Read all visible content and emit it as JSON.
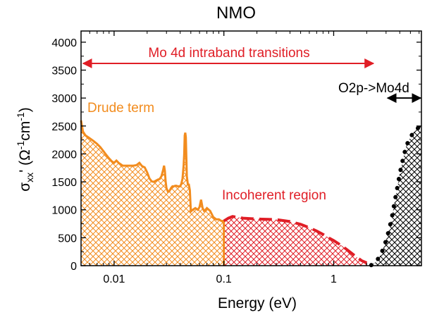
{
  "chart_data": {
    "type": "area",
    "title": "NMO",
    "xlabel": "Energy (eV)",
    "ylabel": "σ",
    "ylabel_sub": "xx",
    "ylabel_rest": "' (Ω",
    "ylabel_exp1": "-1",
    "ylabel_cm": "cm",
    "ylabel_exp2": "-1",
    "ylabel_close": ")",
    "x_scale": "log",
    "xlim": [
      0.005,
      6.3
    ],
    "ylim": [
      0,
      4200
    ],
    "x_ticks": [
      {
        "value": 0.01,
        "label": "0.01"
      },
      {
        "value": 0.1,
        "label": "0.1"
      },
      {
        "value": 1,
        "label": "1"
      }
    ],
    "y_ticks": [
      {
        "value": 0,
        "label": "0"
      },
      {
        "value": 500,
        "label": "500"
      },
      {
        "value": 1000,
        "label": "1000"
      },
      {
        "value": 1500,
        "label": "1500"
      },
      {
        "value": 2000,
        "label": "2000"
      },
      {
        "value": 2500,
        "label": "2500"
      },
      {
        "value": 3000,
        "label": "3000"
      },
      {
        "value": 3500,
        "label": "3500"
      },
      {
        "value": 4000,
        "label": "4000"
      }
    ],
    "grid": false,
    "series": [
      {
        "color": "#f28c1e",
        "x": [
          0.005,
          0.0052,
          0.0055,
          0.006,
          0.0065,
          0.007,
          0.0075,
          0.008,
          0.0085,
          0.009,
          0.0095,
          0.01,
          0.0105,
          0.011,
          0.012,
          0.013,
          0.014,
          0.015,
          0.016,
          0.017,
          0.018,
          0.019,
          0.02,
          0.021,
          0.022,
          0.023,
          0.024,
          0.025,
          0.026,
          0.027,
          0.028,
          0.0285,
          0.029,
          0.0295,
          0.03,
          0.031,
          0.032,
          0.033,
          0.034,
          0.035,
          0.036,
          0.037,
          0.038,
          0.039,
          0.04,
          0.041,
          0.042,
          0.043,
          0.0435,
          0.044,
          0.0445,
          0.045,
          0.0455,
          0.046,
          0.047,
          0.048,
          0.049,
          0.05,
          0.052,
          0.055,
          0.058,
          0.06,
          0.062,
          0.064,
          0.066,
          0.068,
          0.07,
          0.075,
          0.08,
          0.085,
          0.09,
          0.095,
          0.1
        ],
        "y": [
          2600,
          2400,
          2330,
          2280,
          2230,
          2180,
          2120,
          2050,
          1980,
          1920,
          1870,
          1840,
          1880,
          1840,
          1790,
          1790,
          1790,
          1790,
          1800,
          1840,
          1780,
          1760,
          1670,
          1560,
          1510,
          1500,
          1520,
          1540,
          1550,
          1600,
          1720,
          1790,
          1700,
          1500,
          1390,
          1320,
          1340,
          1390,
          1420,
          1420,
          1430,
          1430,
          1420,
          1420,
          1420,
          1470,
          1560,
          1800,
          2000,
          2330,
          2380,
          2300,
          1950,
          1600,
          1450,
          1450,
          1350,
          970,
          1000,
          1030,
          1000,
          1050,
          1180,
          1030,
          980,
          1000,
          1030,
          980,
          870,
          830,
          830,
          800,
          800
        ]
      },
      {
        "color": "#e01e26",
        "dashed": true,
        "x": [
          0.1,
          0.11,
          0.12,
          0.13,
          0.15,
          0.2,
          0.3,
          0.4,
          0.5,
          0.6,
          0.7,
          0.8,
          0.9,
          1.0,
          1.2,
          1.4,
          1.6,
          1.8,
          2.0
        ],
        "y": [
          800,
          850,
          880,
          870,
          850,
          835,
          825,
          790,
          740,
          680,
          620,
          560,
          500,
          450,
          350,
          250,
          160,
          90,
          50
        ]
      },
      {
        "color": "#000000",
        "dotted": true,
        "x": [
          2.2,
          2.4,
          2.6,
          2.8,
          3.0,
          3.2,
          3.4,
          3.6,
          3.8,
          4.0,
          4.3,
          4.6,
          5.0,
          5.4,
          5.8,
          6.2
        ],
        "y": [
          10,
          60,
          150,
          280,
          450,
          650,
          880,
          1150,
          1400,
          1650,
          1930,
          2150,
          2300,
          2400,
          2450,
          2530
        ]
      }
    ],
    "annotations": [
      {
        "text": "Mo 4d intraband transitions",
        "color": "#e01e26",
        "arrow_x": [
          0.005,
          2.3
        ],
        "arrow_y": 3620,
        "style": "double-arrow"
      },
      {
        "text": "Drude term",
        "color": "#f28c1e"
      },
      {
        "text": "Incoherent region",
        "color": "#e01e26"
      },
      {
        "text": "O2p->Mo4d",
        "color": "#000000",
        "arrow_x": [
          3.1,
          6.2
        ],
        "arrow_y": 3000,
        "style": "double-arrow"
      }
    ]
  }
}
